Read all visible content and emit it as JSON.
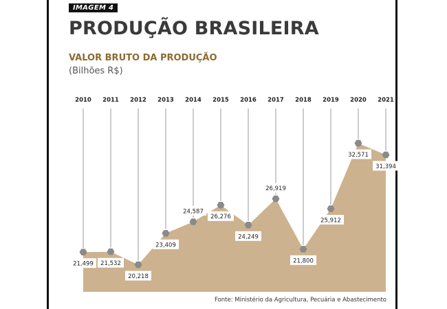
{
  "header": {
    "tag": "IMAGEM 4",
    "title": "PRODUÇÃO BRASILEIRA"
  },
  "chart_data": {
    "type": "area",
    "title": "VALOR BRUTO DA PRODUÇÃO",
    "subtitle": "(Bilhões R$)",
    "categories": [
      "2010",
      "2011",
      "2012",
      "2013",
      "2014",
      "2015",
      "2016",
      "2017",
      "2018",
      "2019",
      "2020",
      "2021"
    ],
    "values": [
      21.499,
      21.532,
      20.218,
      23.409,
      24.587,
      26.276,
      24.249,
      26.919,
      21.8,
      25.912,
      32.571,
      31.394
    ],
    "value_labels": [
      "21,499",
      "21,532",
      "20,218",
      "23,409",
      "24,587",
      "26,276",
      "24,249",
      "26,919",
      "21,800",
      "25,912",
      "32,571",
      "31,394"
    ],
    "label_side": [
      "below",
      "below",
      "below",
      "below",
      "above",
      "below",
      "below",
      "above",
      "below",
      "below",
      "below",
      "below"
    ],
    "grid": false,
    "legend": "none",
    "colors": {
      "area": "#cdb28f",
      "marker": "#8a8a8a",
      "guide_line": "#9a9a9a",
      "subtitle": "#8c6a2f"
    }
  },
  "footer": {
    "source": "Fonte: Ministério da Agricultura, Pecuária e Abastecimento"
  }
}
